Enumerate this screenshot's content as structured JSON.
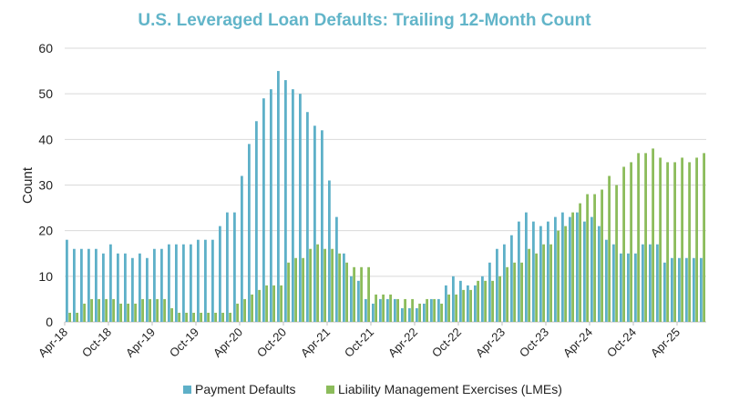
{
  "chart_data": {
    "type": "bar",
    "title": "U.S. Leveraged Loan Defaults: Trailing 12-Month Count",
    "xlabel": "",
    "ylabel": "Count",
    "ylim": [
      0,
      60
    ],
    "yticks": [
      0,
      10,
      20,
      30,
      40,
      50,
      60
    ],
    "grid": true,
    "legend_position": "bottom",
    "x_start": "Apr-18",
    "x_end": "Jul-25",
    "x_tick_labels": [
      "Apr-18",
      "Oct-18",
      "Apr-19",
      "Oct-19",
      "Apr-20",
      "Oct-20",
      "Apr-21",
      "Oct-21",
      "Apr-22",
      "Oct-22",
      "Apr-23",
      "Oct-23",
      "Apr-24",
      "Oct-24",
      "Apr-25"
    ],
    "x_tick_every_months": 6,
    "colors": {
      "title": "#62b5c9",
      "payment": "#5eb0c8",
      "lme": "#8cbc5b",
      "grid": "#d9d9d9"
    },
    "series": [
      {
        "name": "Payment Defaults",
        "values": [
          18,
          16,
          16,
          16,
          16,
          15,
          17,
          15,
          15,
          14,
          15,
          14,
          16,
          16,
          17,
          17,
          17,
          17,
          18,
          18,
          18,
          21,
          24,
          24,
          32,
          39,
          44,
          49,
          51,
          55,
          53,
          51,
          50,
          46,
          43,
          42,
          31,
          23,
          15,
          10,
          9,
          5,
          4,
          5,
          5,
          5,
          3,
          3,
          3,
          4,
          5,
          5,
          8,
          10,
          9,
          8,
          8,
          10,
          13,
          16,
          17,
          19,
          22,
          24,
          22,
          21,
          22,
          23,
          24,
          23,
          24,
          22,
          23,
          21,
          18,
          17,
          15,
          15,
          15,
          17,
          17,
          17,
          13,
          14,
          14,
          14,
          14,
          14
        ]
      },
      {
        "name": "Liability Management Exercises (LMEs)",
        "values": [
          2,
          2,
          4,
          5,
          5,
          5,
          5,
          4,
          4,
          4,
          5,
          5,
          5,
          5,
          3,
          2,
          2,
          2,
          2,
          2,
          2,
          2,
          2,
          4,
          5,
          6,
          7,
          8,
          8,
          8,
          13,
          14,
          14,
          16,
          17,
          16,
          16,
          15,
          13,
          12,
          12,
          12,
          6,
          6,
          6,
          5,
          5,
          5,
          4,
          5,
          5,
          4,
          6,
          6,
          7,
          7,
          9,
          9,
          9,
          10,
          12,
          13,
          13,
          16,
          15,
          17,
          17,
          20,
          21,
          24,
          26,
          28,
          28,
          29,
          32,
          30,
          34,
          35,
          37,
          37,
          38,
          36,
          35,
          35,
          36,
          35,
          36,
          37
        ]
      }
    ]
  }
}
